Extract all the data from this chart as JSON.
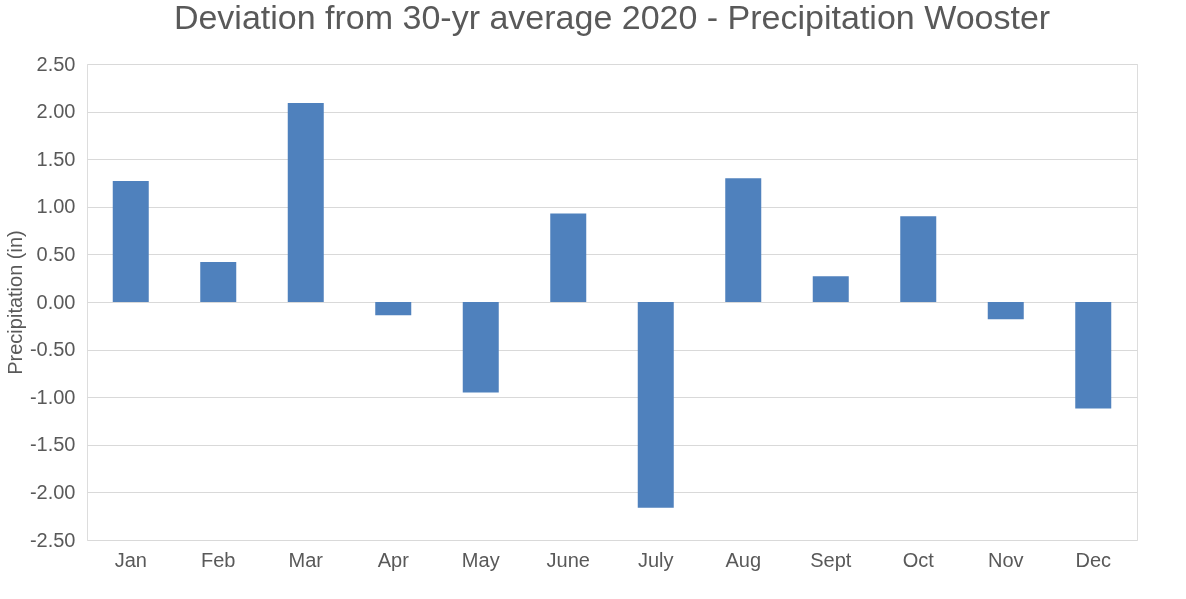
{
  "chart_data": {
    "type": "bar",
    "title": "Deviation from 30-yr average 2020 - Precipitation Wooster",
    "ylabel": "Precipitation (in)",
    "categories": [
      "Jan",
      "Feb",
      "Mar",
      "Apr",
      "May",
      "June",
      "July",
      "Aug",
      "Sept",
      "Oct",
      "Nov",
      "Dec"
    ],
    "values": [
      1.27,
      0.42,
      2.09,
      -0.14,
      -0.95,
      0.93,
      -2.16,
      1.3,
      0.27,
      0.9,
      -0.18,
      -1.12
    ],
    "color": "#4f81bd",
    "ylim": [
      -2.5,
      2.5
    ],
    "yticks": [
      {
        "value": -2.5,
        "label": "-2.50"
      },
      {
        "value": -2.0,
        "label": "-2.00"
      },
      {
        "value": -1.5,
        "label": "-1.50"
      },
      {
        "value": -1.0,
        "label": "-1.00"
      },
      {
        "value": -0.5,
        "label": "-0.50"
      },
      {
        "value": 0,
        "label": "0.00"
      },
      {
        "value": 0.5,
        "label": "0.50"
      },
      {
        "value": 1.0,
        "label": "1.00"
      },
      {
        "value": 1.5,
        "label": "1.50"
      },
      {
        "value": 2.0,
        "label": "2.00"
      },
      {
        "value": 2.5,
        "label": "2.50"
      }
    ],
    "grid": "y"
  }
}
